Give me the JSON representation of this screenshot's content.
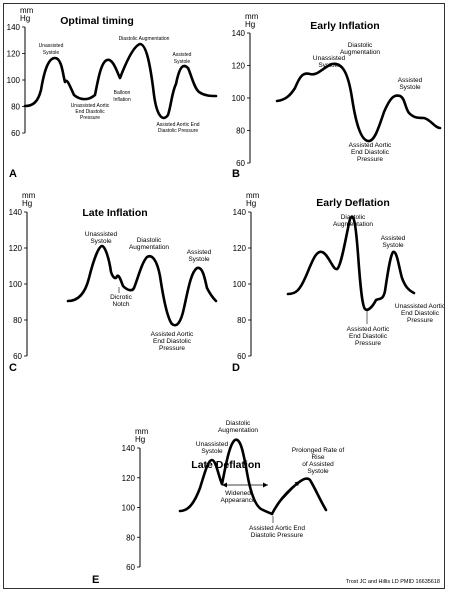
{
  "credit": "Trost JC and Hillis LD PMID 16635618",
  "units": {
    "line1": "mm",
    "line2": "Hg"
  },
  "panels": [
    {
      "letter": "A",
      "title": "Optimal timing",
      "ticks": [
        "140",
        "120",
        "100",
        "80",
        "60"
      ],
      "annotations": [
        "Unassisted Systole",
        "Diastolic Augmentation",
        "Assisted Systole",
        "Balloon Inflation",
        "Unassisted Aortic End Diastolic Pressure",
        "Assisted Aortic End Diastolic Pressure"
      ]
    },
    {
      "letter": "B",
      "title": "Early Inflation",
      "ticks": [
        "140",
        "120",
        "100",
        "80",
        "60"
      ],
      "annotations": [
        "Unassisted Systole",
        "Diastolic Augmentation",
        "Assisted Systole",
        "Assisted Aortic End Diastolic Pressure"
      ]
    },
    {
      "letter": "C",
      "title": "Late Inflation",
      "ticks": [
        "140",
        "120",
        "100",
        "80",
        "60"
      ],
      "annotations": [
        "Unassisted Systole",
        "Diastolic Augmentation",
        "Assisted Systole",
        "Dicrotic Notch",
        "Assisted Aortic End Diastolic Pressure"
      ]
    },
    {
      "letter": "D",
      "title": "Early Deflation",
      "ticks": [
        "140",
        "120",
        "100",
        "80",
        "60"
      ],
      "annotations": [
        "Diastolic Augmentation",
        "Assisted Systole",
        "Unassisted Aortic End Diastolic Pressure",
        "Assisted Aortic End Diastolic Pressure"
      ]
    },
    {
      "letter": "E",
      "title": "Late Deflation",
      "ticks": [
        "140",
        "120",
        "100",
        "80",
        "60"
      ],
      "annotations": [
        "Diastolic Augmentation",
        "Unassisted Systole",
        "Prolonged Rate of Rise of Assisted Systole",
        "Widened Appearance",
        "Assisted Aortic End Diastolic Pressure"
      ]
    }
  ]
}
